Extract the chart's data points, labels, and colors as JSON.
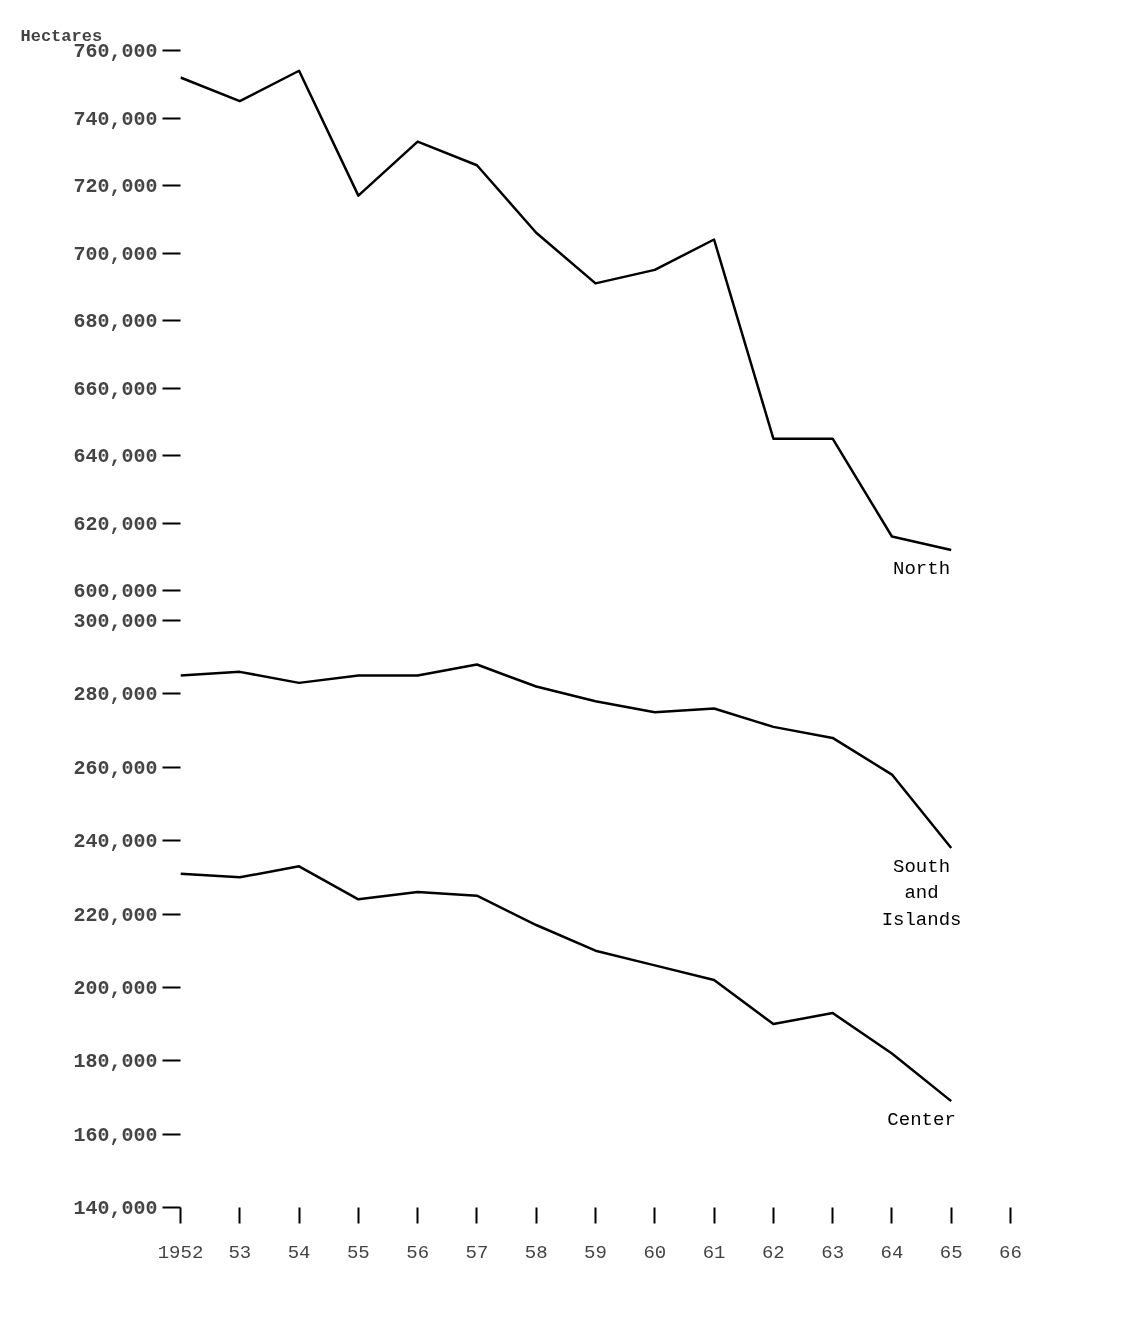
{
  "chart_data": [
    {
      "type": "line",
      "ylabel": "Hectares",
      "x": [
        1952,
        1953,
        1954,
        1955,
        1956,
        1957,
        1958,
        1959,
        1960,
        1961,
        1962,
        1963,
        1964,
        1965
      ],
      "xlim": [
        1952,
        1966
      ],
      "tick_labels": "y",
      "line_style": "solid",
      "ylim": [
        600000,
        760000
      ],
      "yticks": [
        {
          "value": 600000,
          "label": "600,000"
        },
        {
          "value": 620000,
          "label": "620,000"
        },
        {
          "value": 640000,
          "label": "640,000"
        },
        {
          "value": 660000,
          "label": "660,000"
        },
        {
          "value": 680000,
          "label": "680,000"
        },
        {
          "value": 700000,
          "label": "700,000"
        },
        {
          "value": 720000,
          "label": "720,000"
        },
        {
          "value": 740000,
          "label": "740,000"
        },
        {
          "value": 760000,
          "label": "760,000"
        }
      ],
      "series": [
        {
          "name": "North",
          "color": "#000000",
          "values": [
            752000,
            745000,
            754000,
            717000,
            733000,
            726000,
            706000,
            691000,
            695000,
            704000,
            645000,
            645000,
            616000,
            612000
          ]
        }
      ]
    },
    {
      "type": "line",
      "x": [
        1952,
        1953,
        1954,
        1955,
        1956,
        1957,
        1958,
        1959,
        1960,
        1961,
        1962,
        1963,
        1964,
        1965
      ],
      "xlim": [
        1952,
        1966
      ],
      "line_style": "solid",
      "ylim": [
        140000,
        300000
      ],
      "xticks": [
        {
          "value": 1952,
          "label": "1952"
        },
        {
          "value": 1953,
          "label": "53"
        },
        {
          "value": 1954,
          "label": "54"
        },
        {
          "value": 1955,
          "label": "55"
        },
        {
          "value": 1956,
          "label": "56"
        },
        {
          "value": 1957,
          "label": "57"
        },
        {
          "value": 1958,
          "label": "58"
        },
        {
          "value": 1959,
          "label": "59"
        },
        {
          "value": 1960,
          "label": "60"
        },
        {
          "value": 1961,
          "label": "61"
        },
        {
          "value": 1962,
          "label": "62"
        },
        {
          "value": 1963,
          "label": "63"
        },
        {
          "value": 1964,
          "label": "64"
        },
        {
          "value": 1965,
          "label": "65"
        },
        {
          "value": 1966,
          "label": "66"
        }
      ],
      "yticks": [
        {
          "value": 140000,
          "label": "140,000"
        },
        {
          "value": 160000,
          "label": "160,000"
        },
        {
          "value": 180000,
          "label": "180,000"
        },
        {
          "value": 200000,
          "label": "200,000"
        },
        {
          "value": 220000,
          "label": "220,000"
        },
        {
          "value": 240000,
          "label": "240,000"
        },
        {
          "value": 260000,
          "label": "260,000"
        },
        {
          "value": 280000,
          "label": "280,000"
        },
        {
          "value": 300000,
          "label": "300,000"
        }
      ],
      "series": [
        {
          "name": "South and Islands",
          "color": "#000000",
          "values": [
            285000,
            286000,
            283000,
            285000,
            285000,
            288000,
            282000,
            278000,
            275000,
            276000,
            271000,
            268000,
            258000,
            238000
          ]
        },
        {
          "name": "Center",
          "color": "#000000",
          "values": [
            231000,
            230000,
            233000,
            224000,
            226000,
            225000,
            217000,
            210000,
            206000,
            202000,
            190000,
            193000,
            182000,
            169000
          ]
        }
      ]
    }
  ]
}
